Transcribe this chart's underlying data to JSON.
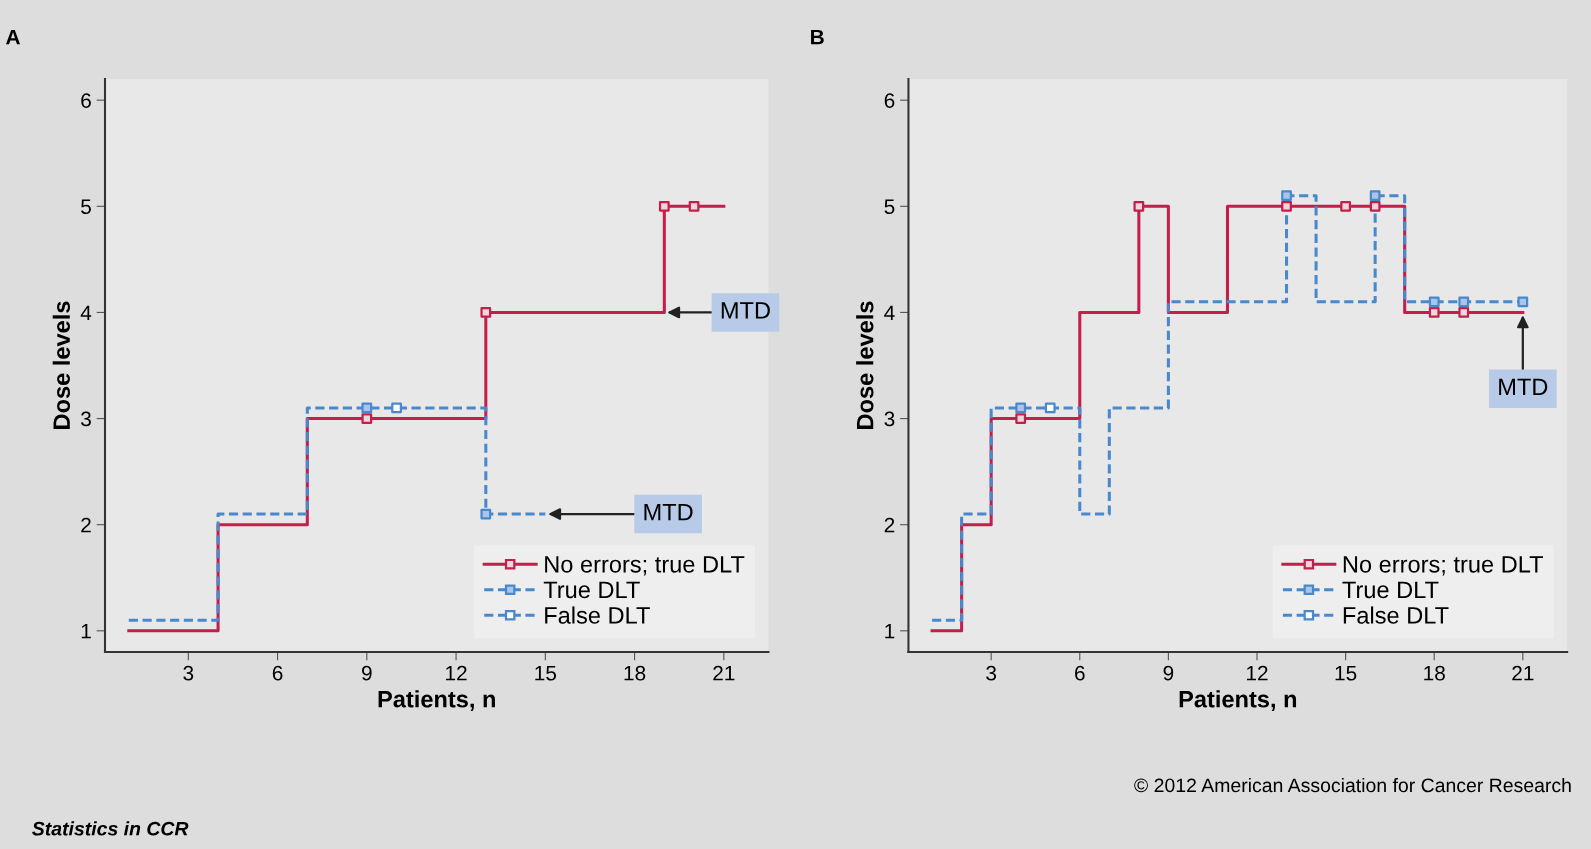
{
  "chart_data": [
    {
      "type": "step",
      "title": "A",
      "xlabel": "Patients, n",
      "ylabel": "Dose levels",
      "xlim": [
        0.2,
        22.5
      ],
      "ylim": [
        0.8,
        6.2
      ],
      "xticks": [
        3,
        6,
        9,
        12,
        15,
        18,
        21
      ],
      "yticks": [
        1,
        2,
        3,
        4,
        5,
        6
      ],
      "grid": false,
      "legend": "bottom right",
      "series": [
        {
          "color": "#c41e4a",
          "line_style": "solid",
          "x": [
            1,
            2,
            3,
            4,
            5,
            6,
            7,
            8,
            9,
            10,
            11,
            12,
            13,
            14,
            15,
            16,
            17,
            18,
            19,
            20,
            21
          ],
          "values": [
            1,
            1,
            1,
            2,
            2,
            2,
            3,
            3,
            3,
            3,
            3,
            3,
            4,
            4,
            4,
            4,
            4,
            4,
            5,
            5,
            5
          ]
        },
        {
          "color": "#4a88cc",
          "line_style": "dashed",
          "x": [
            1,
            2,
            3,
            4,
            5,
            6,
            7,
            8,
            9,
            10,
            11,
            12,
            13,
            14,
            15
          ],
          "values": [
            1.1,
            1.1,
            1.1,
            2.1,
            2.1,
            2.1,
            3.1,
            3.1,
            3.1,
            3.1,
            3.1,
            3.1,
            2.1,
            2.1,
            2.1
          ]
        },
        {
          "type": "scatter",
          "name": "No errors; true DLT",
          "color": "#c41e4a",
          "colors": [
            "#f2d6dc",
            "#f2d6dc",
            "#f2d6dc",
            "#f2d6dc"
          ],
          "marker": "square",
          "line_style": "solid",
          "x": [
            9,
            13,
            19,
            20
          ],
          "values": [
            3,
            4,
            5,
            5
          ]
        },
        {
          "type": "scatter",
          "name": "True DLT",
          "color": "#4a88cc",
          "colors": [
            "#a9c6ea",
            "#a9c6ea"
          ],
          "marker": "square",
          "line_style": "dashed",
          "x": [
            9,
            13
          ],
          "values": [
            3.1,
            2.1
          ]
        },
        {
          "type": "scatter",
          "name": "False DLT",
          "color": "#4a88cc",
          "colors": [
            "#ffffff"
          ],
          "marker": "square",
          "line_style": "dashed",
          "x": [
            10
          ],
          "values": [
            3.1
          ]
        }
      ],
      "annotations": [
        {
          "text": "MTD",
          "x": 19,
          "y": 4
        },
        {
          "text": "MTD",
          "x": 15,
          "y": 2.1
        },
        "Statistics in CCR"
      ]
    },
    {
      "type": "step",
      "title": "B",
      "xlabel": "Patients, n",
      "ylabel": "Dose levels",
      "xlim": [
        0.2,
        22.5
      ],
      "ylim": [
        0.8,
        6.2
      ],
      "xticks": [
        3,
        6,
        9,
        12,
        15,
        18,
        21
      ],
      "yticks": [
        1,
        2,
        3,
        4,
        5,
        6
      ],
      "grid": false,
      "legend": "bottom right",
      "series": [
        {
          "color": "#c41e4a",
          "line_style": "solid",
          "x": [
            1,
            2,
            3,
            4,
            5,
            6,
            7,
            8,
            9,
            10,
            11,
            12,
            13,
            14,
            15,
            16,
            17,
            18,
            19,
            20,
            21
          ],
          "values": [
            1,
            2,
            3,
            3,
            3,
            4,
            4,
            5,
            4,
            4,
            5,
            5,
            5,
            5,
            5,
            5,
            4,
            4,
            4,
            4,
            4
          ]
        },
        {
          "color": "#4a88cc",
          "line_style": "dashed",
          "x": [
            1,
            2,
            3,
            4,
            5,
            6,
            7,
            8,
            9,
            10,
            11,
            12,
            13,
            14,
            15,
            16,
            17,
            18,
            19,
            20,
            21
          ],
          "values": [
            1.1,
            2.1,
            3.1,
            3.1,
            3.1,
            2.1,
            3.1,
            3.1,
            4.1,
            4.1,
            4.1,
            4.1,
            5.1,
            4.1,
            4.1,
            5.1,
            4.1,
            4.1,
            4.1,
            4.1,
            4.1
          ]
        },
        {
          "type": "scatter",
          "name": "No errors; true DLT",
          "color": "#c41e4a",
          "colors": [
            "#f2d6dc",
            "#f2d6dc",
            "#f2d6dc",
            "#f2d6dc",
            "#f2d6dc",
            "#f2d6dc",
            "#f2d6dc"
          ],
          "marker": "square",
          "line_style": "solid",
          "x": [
            4,
            8,
            13,
            15,
            16,
            18,
            19
          ],
          "values": [
            3,
            5,
            5,
            5,
            5,
            4,
            4
          ]
        },
        {
          "type": "scatter",
          "name": "True DLT",
          "color": "#4a88cc",
          "colors": [
            "#a9c6ea",
            "#a9c6ea",
            "#a9c6ea",
            "#a9c6ea",
            "#a9c6ea",
            "#a9c6ea"
          ],
          "marker": "square",
          "line_style": "dashed",
          "x": [
            4,
            13,
            16,
            18,
            19,
            21
          ],
          "values": [
            3.1,
            5.1,
            5.1,
            4.1,
            4.1,
            4.1
          ]
        },
        {
          "type": "scatter",
          "name": "False DLT",
          "color": "#4a88cc",
          "colors": [
            "#ffffff"
          ],
          "marker": "square",
          "line_style": "dashed",
          "x": [
            5
          ],
          "values": [
            3.1
          ]
        }
      ],
      "annotations": [
        {
          "text": "MTD",
          "x": 21,
          "y": 4
        },
        "© 2012 American Association for Cancer Research"
      ]
    }
  ]
}
